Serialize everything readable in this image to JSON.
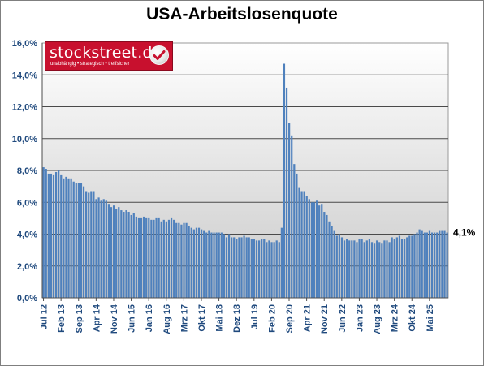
{
  "chart_data": {
    "type": "bar",
    "title": "USA-Arbeitslosenquote",
    "xlabel": "",
    "ylabel": "",
    "ylim": [
      0,
      16
    ],
    "yticks": [
      "0,0%",
      "2,0%",
      "4,0%",
      "6,0%",
      "8,0%",
      "10,0%",
      "12,0%",
      "14,0%",
      "16,0%"
    ],
    "grid": true,
    "legend": "none",
    "bar_color": "#4f81bd",
    "x_tick_labels": [
      "Jul 12",
      "Feb 13",
      "Sep 13",
      "Apr 14",
      "Nov 14",
      "Jun 15",
      "Jan 16",
      "Aug 16",
      "Mrz 17",
      "Okt 17",
      "Mai 18",
      "Dez 18",
      "Jul 19",
      "Feb 20",
      "Sep 20",
      "Apr 21",
      "Nov 21",
      "Jun 22",
      "Jan 23",
      "Aug 23",
      "Mrz 24",
      "Okt 24",
      "Mai 25"
    ],
    "x_tick_every": 7,
    "end_label": "4,1%",
    "values": [
      8.2,
      8.1,
      7.8,
      7.8,
      7.7,
      7.9,
      8.0,
      7.7,
      7.5,
      7.6,
      7.5,
      7.5,
      7.3,
      7.2,
      7.2,
      7.2,
      7.0,
      6.7,
      6.6,
      6.7,
      6.7,
      6.2,
      6.3,
      6.1,
      6.2,
      6.1,
      5.9,
      5.7,
      5.8,
      5.6,
      5.7,
      5.5,
      5.4,
      5.5,
      5.4,
      5.2,
      5.3,
      5.1,
      5.0,
      5.0,
      5.1,
      5.0,
      5.0,
      4.9,
      4.9,
      5.0,
      5.0,
      4.8,
      4.9,
      4.8,
      4.9,
      5.0,
      4.9,
      4.7,
      4.7,
      4.6,
      4.7,
      4.7,
      4.5,
      4.4,
      4.3,
      4.4,
      4.4,
      4.3,
      4.2,
      4.1,
      4.2,
      4.1,
      4.1,
      4.1,
      4.1,
      4.1,
      4.0,
      3.8,
      4.0,
      3.8,
      3.8,
      3.7,
      3.8,
      3.8,
      3.9,
      3.8,
      3.8,
      3.7,
      3.7,
      3.6,
      3.6,
      3.7,
      3.7,
      3.5,
      3.6,
      3.5,
      3.5,
      3.6,
      3.5,
      4.4,
      14.7,
      13.2,
      11.0,
      10.2,
      8.4,
      7.8,
      6.9,
      6.7,
      6.7,
      6.4,
      6.2,
      6.0,
      6.0,
      6.1,
      5.8,
      5.9,
      5.4,
      5.2,
      4.8,
      4.5,
      4.2,
      3.9,
      4.0,
      3.8,
      3.6,
      3.7,
      3.6,
      3.6,
      3.6,
      3.5,
      3.7,
      3.7,
      3.5,
      3.6,
      3.7,
      3.5,
      3.4,
      3.6,
      3.5,
      3.4,
      3.6,
      3.6,
      3.5,
      3.8,
      3.7,
      3.8,
      3.9,
      3.7,
      3.7,
      3.8,
      3.9,
      3.9,
      4.0,
      4.1,
      4.3,
      4.2,
      4.1,
      4.1,
      4.2,
      4.1,
      4.1,
      4.1,
      4.2,
      4.2,
      4.2,
      4.1
    ]
  },
  "logo": {
    "brand": "stockstreet.de",
    "tagline": "unabhängig • strategisch • treffsicher",
    "check_icon": "checkmark-icon"
  }
}
